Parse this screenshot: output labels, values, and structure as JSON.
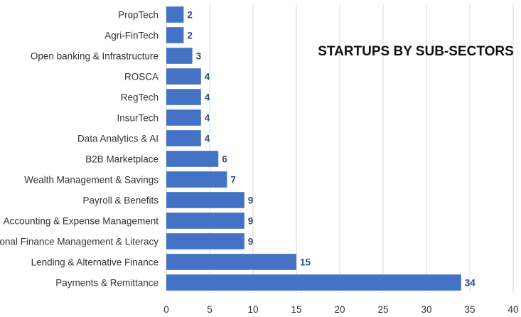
{
  "chart_data": {
    "type": "bar",
    "orientation": "horizontal",
    "title": "STARTUPS BY SUB-SECTORS",
    "xlabel": "",
    "ylabel": "",
    "categories": [
      "PropTech",
      "Agri-FinTech",
      "Open banking & Infrastructure",
      "ROSCA",
      "RegTech",
      "InsurTech",
      "Data Analytics & AI",
      "B2B Marketplace",
      "Wealth Management & Savings",
      "Payroll & Benefits",
      "Accounting & Expense Management",
      "Personal Finance Management & Literacy",
      "Lending & Alternative Finance",
      "Payments & Remittance"
    ],
    "values": [
      2,
      2,
      3,
      4,
      4,
      4,
      4,
      6,
      7,
      9,
      9,
      9,
      15,
      34
    ],
    "xlim": [
      0,
      40
    ],
    "xticks": [
      0,
      5,
      10,
      15,
      20,
      25,
      30,
      35,
      40
    ],
    "grid": "vertical",
    "legend": "none",
    "data_labels": true,
    "colors": {
      "bar": "#4472c4",
      "value_label": "#2f4d82",
      "grid": "#d9d9d9"
    }
  }
}
